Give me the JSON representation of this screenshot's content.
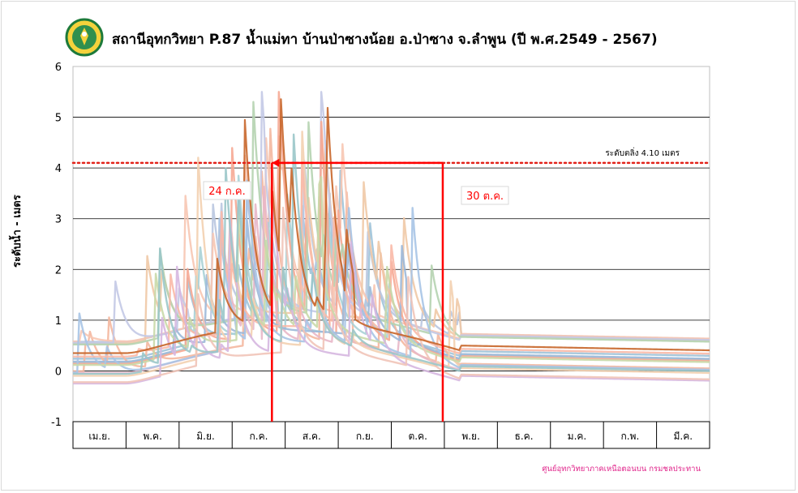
{
  "title": "สถานีอุทกวิทยา P.87 น้ำแม่ทา บ้านป่าซางน้อย อ.ป่าซาง จ.ลำพูน (ปี พ.ศ.2549 - 2567)",
  "logo_text": "กรมชลประทาน",
  "footer": "ศูนย์อุทกวิทยาภาคเหนือตอนบน กรมชลประทาน",
  "colors": {
    "threshold": "#e2231a",
    "window": "#ff0000",
    "highlight_series": "#c8662a",
    "footer": "#e0238a"
  },
  "chart_data": {
    "type": "line",
    "title": "สถานีอุทกวิทยา P.87 น้ำแม่ทา บ้านป่าซางน้อย อ.ป่าซาง จ.ลำพูน (ปี พ.ศ.2549 - 2567)",
    "ylabel": "ระดับน้ำ - เมตร",
    "xlabel": "",
    "ylim": [
      -1,
      6
    ],
    "yticks": [
      "-1",
      "0",
      "1",
      "2",
      "3",
      "4",
      "5",
      "6"
    ],
    "grid": "horizontal",
    "categories": [
      "เม.ย.",
      "พ.ค.",
      "มิ.ย.",
      "ก.ค.",
      "ส.ค.",
      "ก.ย.",
      "ต.ค.",
      "พ.ย.",
      "ธ.ค.",
      "ม.ค.",
      "ก.พ.",
      "มี.ค."
    ],
    "threshold": {
      "value": 4.1,
      "label": "ระดับตลิ่ง 4.10  เมตร"
    },
    "window": {
      "start_label": "24 ก.ค.",
      "end_label": "30 ต.ค.",
      "start_month_pos": 3.75,
      "end_month_pos": 6.97,
      "level": 4.1
    },
    "series_count": 19
  }
}
